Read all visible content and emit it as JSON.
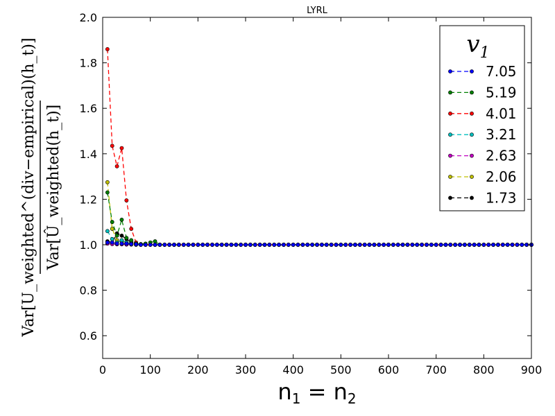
{
  "chart_data": {
    "type": "line",
    "title": "LYRL",
    "xlabel_main": "n",
    "xlabel_sub1": "1",
    "xlabel_eq": " = n",
    "xlabel_sub2": "2",
    "ylabel_numerator": "Var[U_weighted^(div−empirical)(h_t)]",
    "ylabel_denominator": "Var[Û_weighted(h_t)]",
    "legend_title": "v",
    "legend_title_sub": "1",
    "legend_position": "upper-right",
    "xlim": [
      0,
      900
    ],
    "ylim": [
      0.5,
      2.0
    ],
    "xticks": [
      0,
      100,
      200,
      300,
      400,
      500,
      600,
      700,
      800,
      900
    ],
    "yticks": [
      0.6,
      0.8,
      1.0,
      1.2,
      1.4,
      1.6,
      1.8,
      2.0
    ],
    "ytick_labels": [
      "0.6",
      "0.8",
      "1.0",
      "1.2",
      "1.4",
      "1.6",
      "1.8",
      "2.0"
    ],
    "grid": false,
    "tail_value": 1.0,
    "tail_x_start": 80,
    "tail_x_step": 10,
    "tail_x_end": 900,
    "series": [
      {
        "name": "7.05",
        "color": "#0000ff",
        "x": [
          10,
          20,
          30,
          40,
          50,
          60,
          70
        ],
        "y": [
          1.01,
          1.01,
          1.005,
          1.005,
          1.005,
          1.003,
          1.002
        ]
      },
      {
        "name": "5.19",
        "color": "#008000",
        "x": [
          10,
          20,
          30,
          40,
          50,
          60,
          70,
          80,
          90,
          100,
          110
        ],
        "y": [
          1.23,
          1.1,
          1.04,
          1.11,
          1.03,
          1.02,
          1.005,
          1.003,
          1.005,
          1.01,
          1.015
        ]
      },
      {
        "name": "4.01",
        "color": "#ff0000",
        "x": [
          10,
          20,
          30,
          40,
          50,
          60,
          70
        ],
        "y": [
          1.86,
          1.435,
          1.345,
          1.425,
          1.195,
          1.07,
          1.01
        ]
      },
      {
        "name": "3.21",
        "color": "#00bfbf",
        "x": [
          10,
          20,
          30,
          40,
          50,
          60,
          70
        ],
        "y": [
          1.06,
          1.025,
          1.01,
          1.02,
          1.01,
          1.005,
          1.0
        ]
      },
      {
        "name": "2.63",
        "color": "#bf00bf",
        "x": [
          10,
          20,
          30,
          40,
          50,
          60,
          70
        ],
        "y": [
          1.005,
          1.003,
          1.002,
          1.002,
          1.001,
          1.001,
          1.0
        ]
      },
      {
        "name": "2.06",
        "color": "#bfbf00",
        "x": [
          10,
          20,
          30,
          40,
          50,
          60,
          70
        ],
        "y": [
          1.275,
          1.07,
          1.02,
          1.015,
          1.005,
          1.003,
          1.001
        ]
      },
      {
        "name": "1.73",
        "color": "#000000",
        "x": [
          10,
          20,
          30,
          40,
          50,
          60,
          70
        ],
        "y": [
          1.015,
          1.01,
          1.05,
          1.04,
          1.025,
          1.01,
          1.005
        ]
      }
    ]
  }
}
